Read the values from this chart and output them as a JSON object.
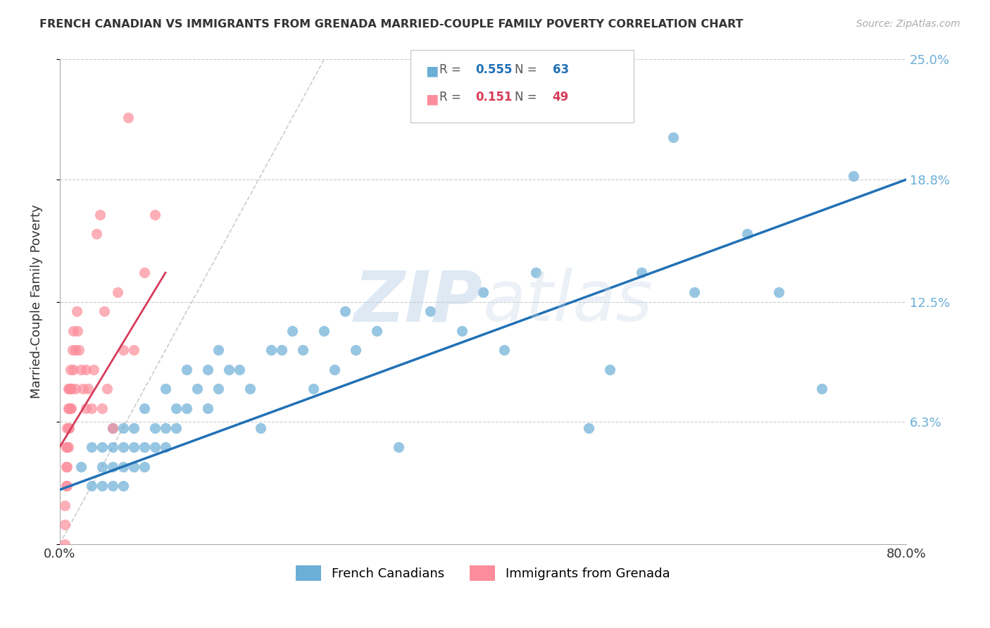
{
  "title": "FRENCH CANADIAN VS IMMIGRANTS FROM GRENADA MARRIED-COUPLE FAMILY POVERTY CORRELATION CHART",
  "source": "Source: ZipAtlas.com",
  "ylabel": "Married-Couple Family Poverty",
  "xlim": [
    0.0,
    0.8
  ],
  "ylim": [
    0.0,
    0.25
  ],
  "yticks": [
    0.0,
    0.063,
    0.125,
    0.188,
    0.25
  ],
  "ytick_labels": [
    "",
    "6.3%",
    "12.5%",
    "18.8%",
    "25.0%"
  ],
  "xticks": [
    0.0,
    0.1,
    0.2,
    0.3,
    0.4,
    0.5,
    0.6,
    0.7,
    0.8
  ],
  "xtick_labels": [
    "0.0%",
    "",
    "",
    "",
    "",
    "",
    "",
    "",
    "80.0%"
  ],
  "blue_color": "#6baed6",
  "pink_color": "#fd8d9b",
  "blue_line_color": "#2171b5",
  "pink_line_color": "#d63b5a",
  "diagonal_color": "#cccccc",
  "watermark_zip": "ZIP",
  "watermark_atlas": "atlas",
  "legend_R_blue": "0.555",
  "legend_N_blue": "63",
  "legend_R_pink": "0.151",
  "legend_N_pink": "49",
  "blue_scatter_x": [
    0.02,
    0.03,
    0.03,
    0.04,
    0.04,
    0.04,
    0.05,
    0.05,
    0.05,
    0.05,
    0.06,
    0.06,
    0.06,
    0.06,
    0.07,
    0.07,
    0.07,
    0.08,
    0.08,
    0.08,
    0.09,
    0.09,
    0.1,
    0.1,
    0.1,
    0.11,
    0.11,
    0.12,
    0.12,
    0.13,
    0.14,
    0.14,
    0.15,
    0.15,
    0.16,
    0.17,
    0.18,
    0.19,
    0.2,
    0.21,
    0.22,
    0.23,
    0.24,
    0.25,
    0.26,
    0.27,
    0.28,
    0.3,
    0.32,
    0.35,
    0.38,
    0.4,
    0.42,
    0.45,
    0.5,
    0.52,
    0.55,
    0.58,
    0.6,
    0.65,
    0.68,
    0.72,
    0.75
  ],
  "blue_scatter_y": [
    0.04,
    0.03,
    0.05,
    0.03,
    0.04,
    0.05,
    0.03,
    0.04,
    0.05,
    0.06,
    0.03,
    0.04,
    0.05,
    0.06,
    0.04,
    0.05,
    0.06,
    0.04,
    0.05,
    0.07,
    0.05,
    0.06,
    0.05,
    0.06,
    0.08,
    0.06,
    0.07,
    0.07,
    0.09,
    0.08,
    0.07,
    0.09,
    0.08,
    0.1,
    0.09,
    0.09,
    0.08,
    0.06,
    0.1,
    0.1,
    0.11,
    0.1,
    0.08,
    0.11,
    0.09,
    0.12,
    0.1,
    0.11,
    0.05,
    0.12,
    0.11,
    0.13,
    0.1,
    0.14,
    0.06,
    0.09,
    0.14,
    0.21,
    0.13,
    0.16,
    0.13,
    0.08,
    0.19
  ],
  "pink_scatter_x": [
    0.005,
    0.005,
    0.005,
    0.006,
    0.006,
    0.006,
    0.007,
    0.007,
    0.007,
    0.007,
    0.008,
    0.008,
    0.008,
    0.008,
    0.009,
    0.009,
    0.009,
    0.01,
    0.01,
    0.01,
    0.011,
    0.011,
    0.012,
    0.013,
    0.013,
    0.015,
    0.015,
    0.016,
    0.017,
    0.018,
    0.02,
    0.022,
    0.025,
    0.025,
    0.027,
    0.03,
    0.032,
    0.035,
    0.038,
    0.04,
    0.042,
    0.045,
    0.05,
    0.055,
    0.06,
    0.065,
    0.07,
    0.08,
    0.09
  ],
  "pink_scatter_y": [
    0.01,
    0.02,
    0.0,
    0.03,
    0.04,
    0.05,
    0.04,
    0.05,
    0.06,
    0.03,
    0.05,
    0.06,
    0.07,
    0.08,
    0.06,
    0.07,
    0.08,
    0.07,
    0.08,
    0.09,
    0.08,
    0.07,
    0.1,
    0.09,
    0.11,
    0.08,
    0.1,
    0.12,
    0.11,
    0.1,
    0.09,
    0.08,
    0.09,
    0.07,
    0.08,
    0.07,
    0.09,
    0.16,
    0.17,
    0.07,
    0.12,
    0.08,
    0.06,
    0.13,
    0.1,
    0.22,
    0.1,
    0.14,
    0.17
  ],
  "blue_line_x": [
    0.0,
    0.8
  ],
  "blue_line_y_start": 0.028,
  "blue_line_y_end": 0.188,
  "pink_line_x": [
    0.0,
    0.1
  ],
  "pink_line_y_start": 0.05,
  "pink_line_y_end": 0.14
}
